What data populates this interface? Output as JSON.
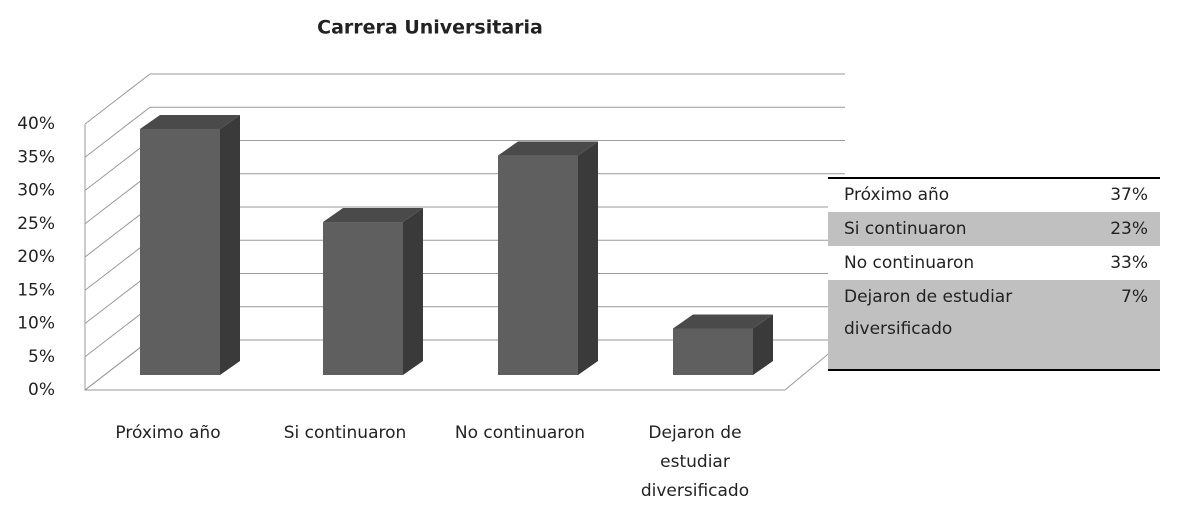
{
  "chart_data": {
    "type": "bar3d",
    "title": "Carrera Universitaria",
    "categories": [
      "Próximo año",
      "Si continuaron",
      "No continuaron",
      "Dejaron de estudiar diversificado"
    ],
    "values": [
      37,
      23,
      33,
      7
    ],
    "value_labels": [
      "37%",
      "23%",
      "33%",
      "7%"
    ],
    "color": "#5f5f5f",
    "ylim": [
      0,
      40
    ],
    "yticks": [
      {
        "value": 0,
        "label": "0%"
      },
      {
        "value": 5,
        "label": "5%"
      },
      {
        "value": 10,
        "label": "10%"
      },
      {
        "value": 15,
        "label": "15%"
      },
      {
        "value": 20,
        "label": "20%"
      },
      {
        "value": 25,
        "label": "25%"
      },
      {
        "value": 30,
        "label": "30%"
      },
      {
        "value": 35,
        "label": "35%"
      },
      {
        "value": 40,
        "label": "40%"
      }
    ],
    "grid": true
  }
}
